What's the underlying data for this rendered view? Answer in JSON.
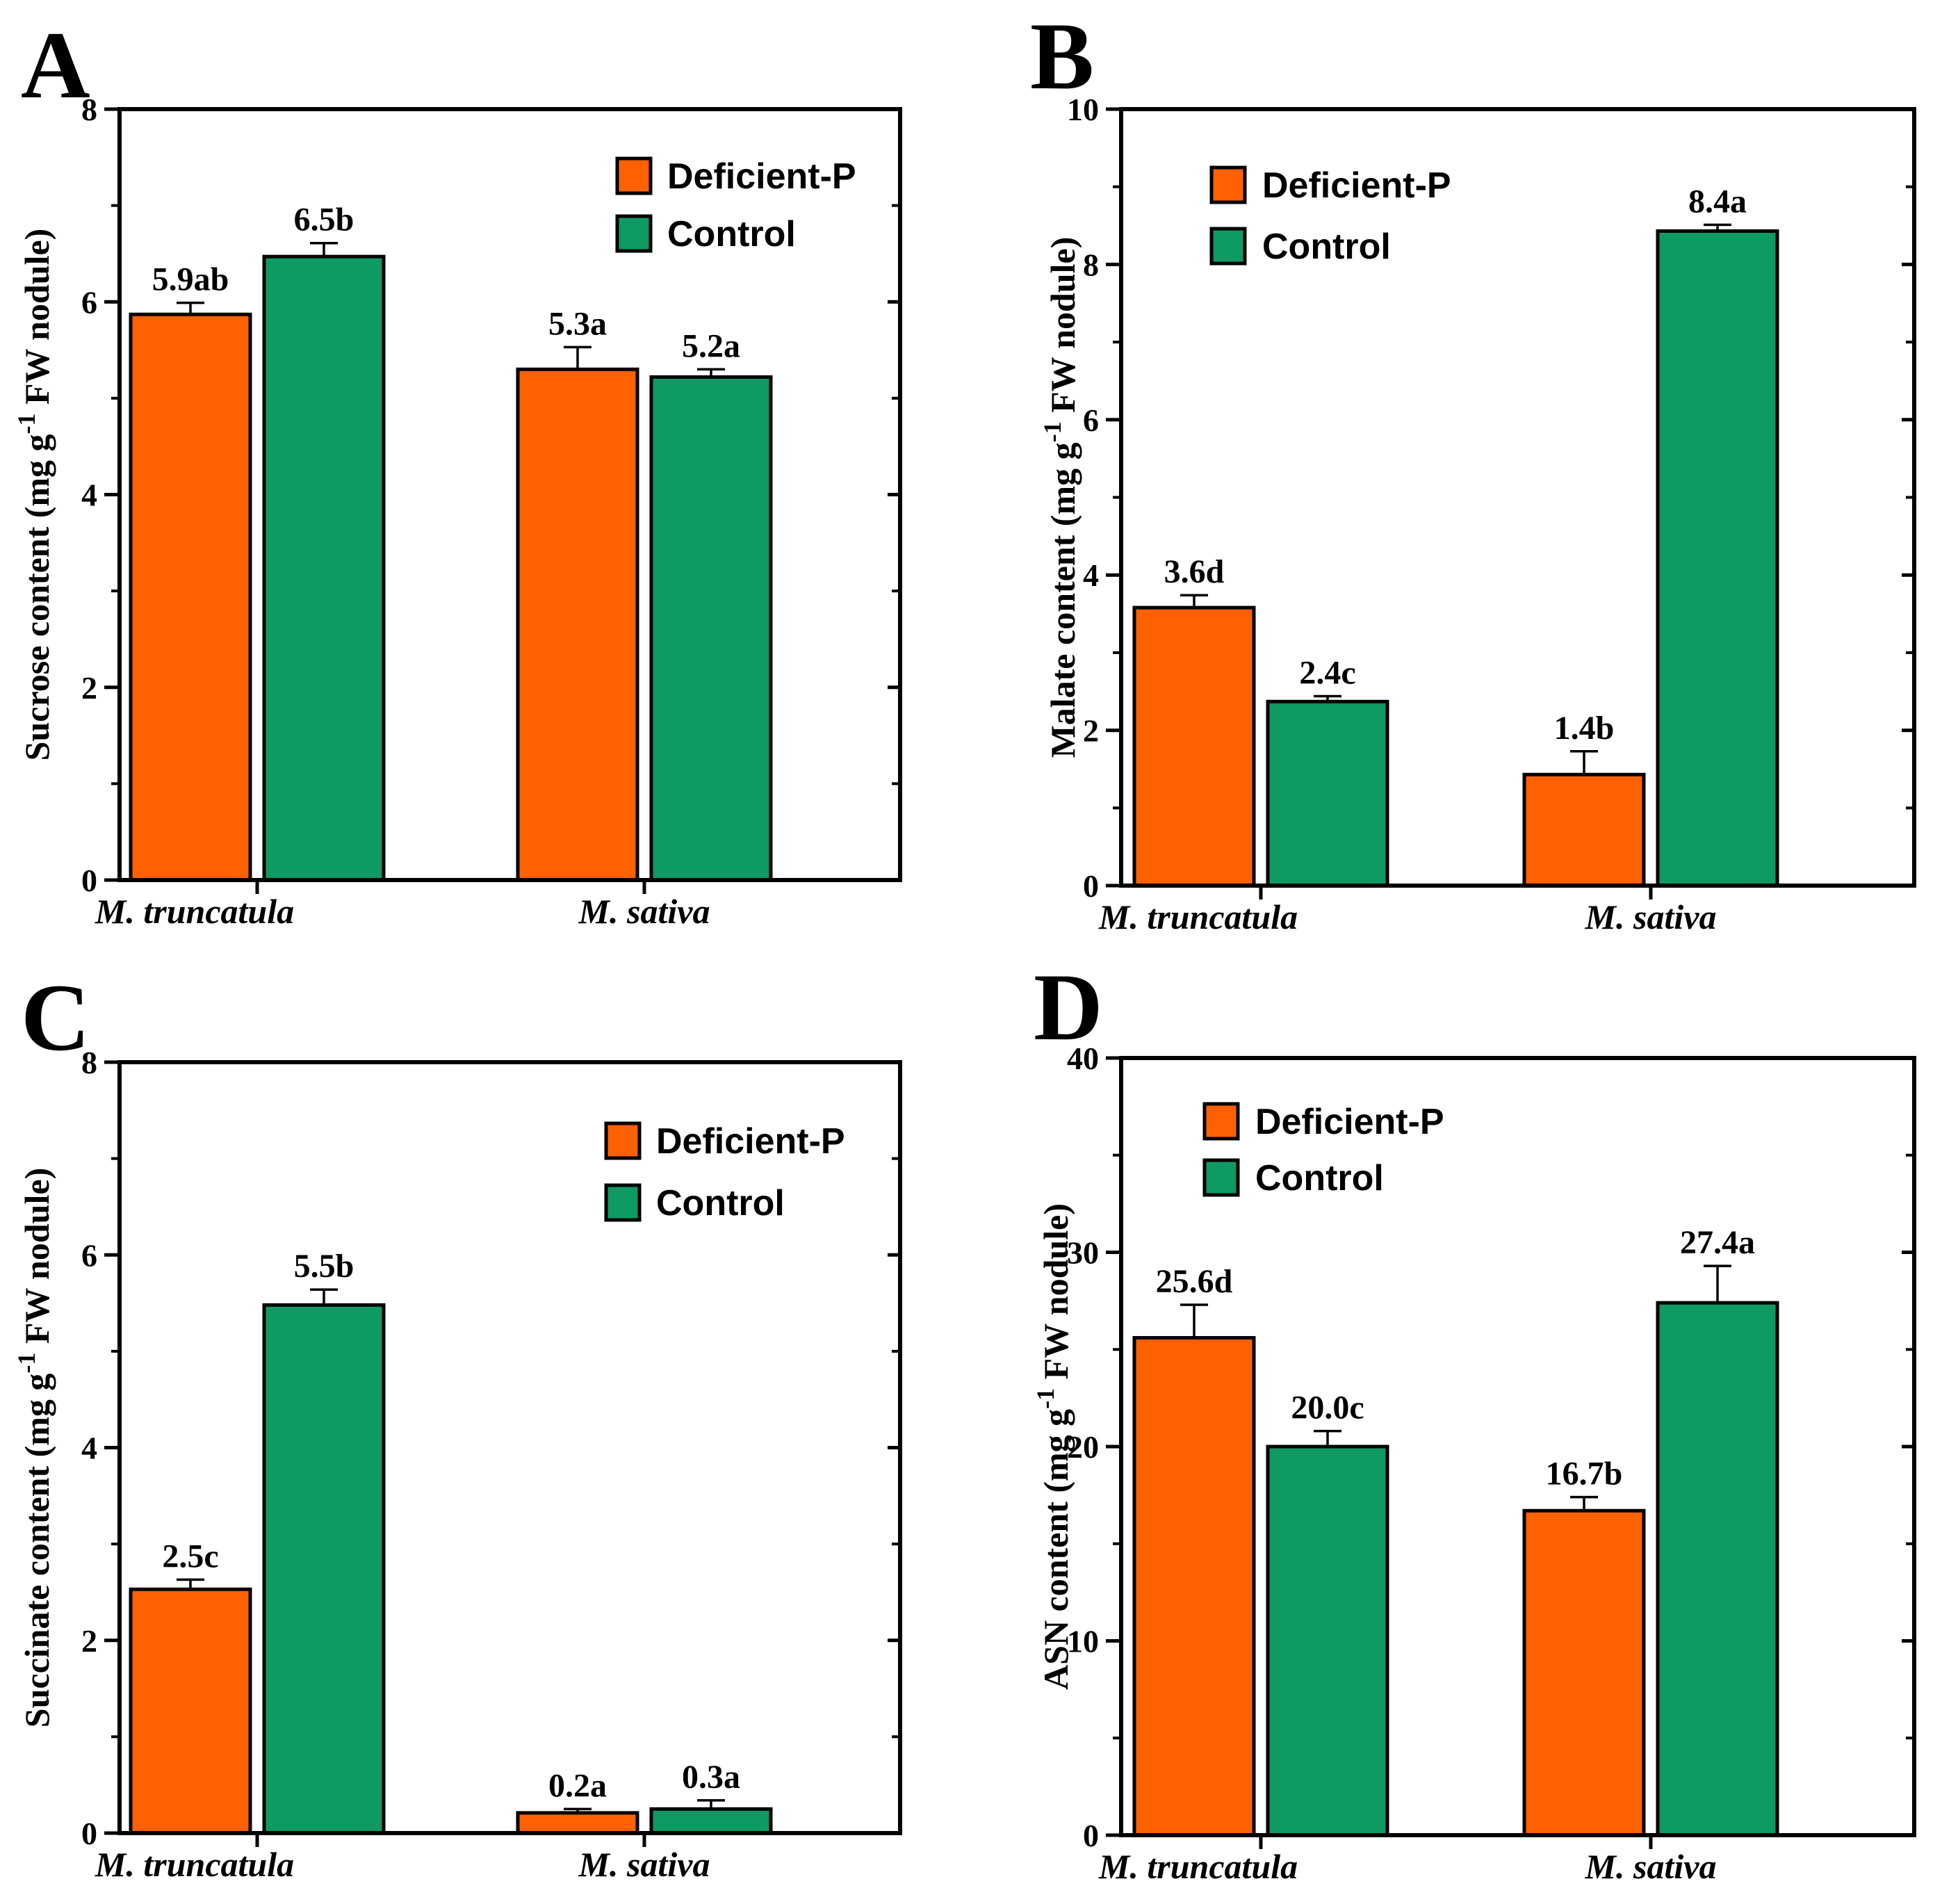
{
  "chart_data": [
    {
      "panel": "A",
      "type": "bar",
      "categories": [
        "M. truncatula",
        "M. sativa"
      ],
      "ylabel_parts": [
        "Sucrose content (mg g",
        "-1",
        " FW nodule)"
      ],
      "ylim": [
        0,
        8
      ],
      "yticks": [
        0,
        2,
        4,
        6,
        8
      ],
      "legend_position": "top-right",
      "series": [
        {
          "name": "Deficient-P",
          "color": "#FF6100",
          "values": [
            5.87,
            5.3
          ],
          "errors": [
            0.12,
            0.23
          ],
          "labels": [
            "5.9ab",
            "5.3a"
          ]
        },
        {
          "name": "Control",
          "color": "#0E9A62",
          "values": [
            6.47,
            5.22
          ],
          "errors": [
            0.14,
            0.08
          ],
          "labels": [
            "6.5b",
            "5.2a"
          ]
        }
      ]
    },
    {
      "panel": "B",
      "type": "bar",
      "categories": [
        "M. truncatula",
        "M. sativa"
      ],
      "ylabel_parts": [
        "Malate content (mg g",
        "-1",
        " FW nodule)"
      ],
      "ylim": [
        0,
        10
      ],
      "yticks": [
        0,
        2,
        4,
        6,
        8,
        10
      ],
      "legend_position": "top-left",
      "series": [
        {
          "name": "Deficient-P",
          "color": "#FF6100",
          "values": [
            3.58,
            1.43
          ],
          "errors": [
            0.16,
            0.3
          ],
          "labels": [
            "3.6d",
            "1.4b"
          ]
        },
        {
          "name": "Control",
          "color": "#0E9A62",
          "values": [
            2.37,
            8.43
          ],
          "errors": [
            0.07,
            0.08
          ],
          "labels": [
            "2.4c",
            "8.4a"
          ]
        }
      ]
    },
    {
      "panel": "C",
      "type": "bar",
      "categories": [
        "M. truncatula",
        "M. sativa"
      ],
      "ylabel_parts": [
        "Succinate content (mg g",
        "-1",
        " FW nodule)"
      ],
      "ylim": [
        0,
        8
      ],
      "yticks": [
        0,
        2,
        4,
        6,
        8
      ],
      "legend_position": "top-right",
      "series": [
        {
          "name": "Deficient-P",
          "color": "#FF6100",
          "values": [
            2.53,
            0.21
          ],
          "errors": [
            0.1,
            0.04
          ],
          "labels": [
            "2.5c",
            "0.2a"
          ]
        },
        {
          "name": "Control",
          "color": "#0E9A62",
          "values": [
            5.48,
            0.25
          ],
          "errors": [
            0.16,
            0.09
          ],
          "labels": [
            "5.5b",
            "0.3a"
          ]
        }
      ]
    },
    {
      "panel": "D",
      "type": "bar",
      "categories": [
        "M. truncatula",
        "M. sativa"
      ],
      "ylabel_parts": [
        "ASN content (mg g",
        "-1",
        " FW nodule)"
      ],
      "ylim": [
        0,
        40
      ],
      "yticks": [
        0,
        10,
        20,
        30,
        40
      ],
      "legend_position": "top-left",
      "series": [
        {
          "name": "Deficient-P",
          "color": "#FF6100",
          "values": [
            25.6,
            16.7
          ],
          "errors": [
            1.7,
            0.7
          ],
          "labels": [
            "25.6d",
            "16.7b"
          ]
        },
        {
          "name": "Control",
          "color": "#0E9A62",
          "values": [
            20.0,
            27.4
          ],
          "errors": [
            0.8,
            1.9
          ],
          "labels": [
            "20.0c",
            "27.4a"
          ]
        }
      ]
    }
  ]
}
